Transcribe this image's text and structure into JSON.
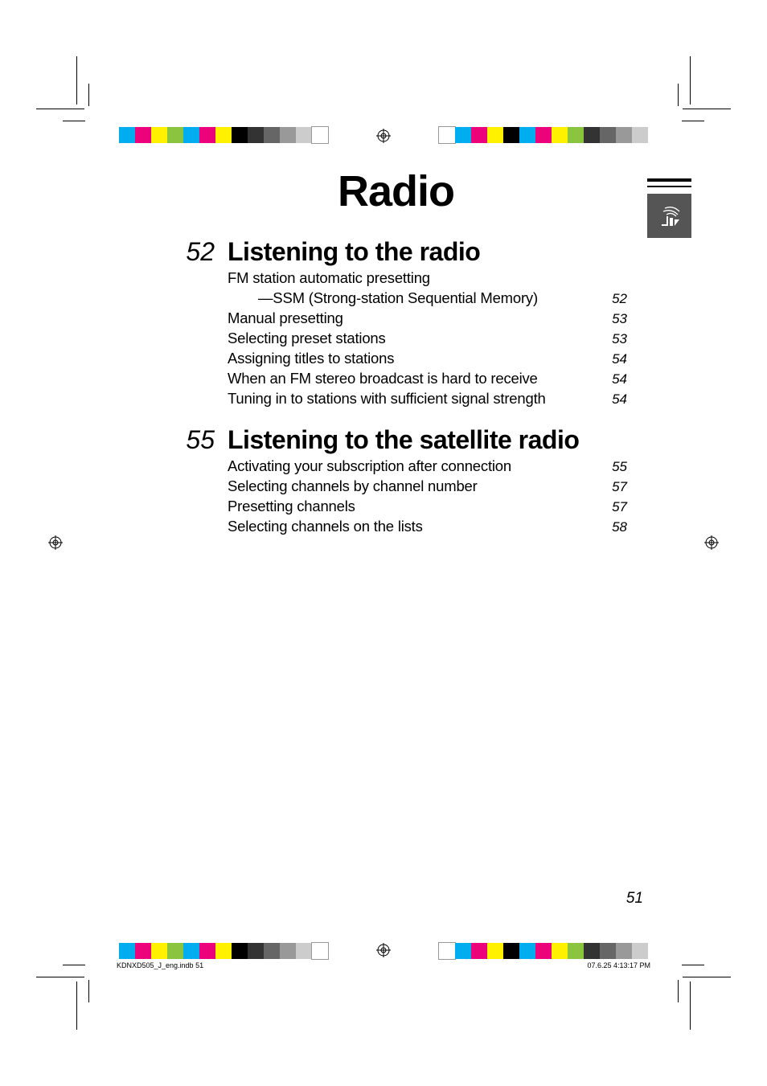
{
  "printer_marks": {
    "swatches_left": [
      "#00adee",
      "#ec037c",
      "#fff100",
      "#8bc53f",
      "#00adee",
      "#ec037c",
      "#fff100",
      "#000000",
      "#333333",
      "#666666",
      "#999999",
      "#cccccc",
      "#ffffff"
    ],
    "swatches_right": [
      "#ffffff",
      "#00adee",
      "#ec037c",
      "#fff100",
      "#000000",
      "#00adee",
      "#ec037c",
      "#fff100",
      "#8bc53f",
      "#333333",
      "#666666",
      "#999999",
      "#cccccc"
    ]
  },
  "side_tab": {
    "icon_name": "satellite-radio-icon"
  },
  "title": "Radio",
  "sections": [
    {
      "number": "52",
      "title": "Listening to the radio",
      "entries": [
        {
          "label": "FM station automatic presetting",
          "page": "",
          "indent": false,
          "continues": true
        },
        {
          "label": "—SSM (Strong-station Sequential Memory)",
          "page": "52",
          "indent": true
        },
        {
          "label": "Manual presetting",
          "page": "53",
          "indent": false
        },
        {
          "label": "Selecting preset stations",
          "page": "53",
          "indent": false
        },
        {
          "label": "Assigning titles to stations",
          "page": "54",
          "indent": false
        },
        {
          "label": "When an FM stereo broadcast is hard to receive",
          "page": "54",
          "indent": false
        },
        {
          "label": "Tuning in to stations with sufficient signal strength",
          "page": "54",
          "indent": false
        }
      ]
    },
    {
      "number": "55",
      "title": "Listening to the satellite radio",
      "entries": [
        {
          "label": "Activating your subscription after connection",
          "page": "55",
          "indent": false
        },
        {
          "label": "Selecting channels by channel number",
          "page": "57",
          "indent": false
        },
        {
          "label": "Presetting channels",
          "page": "57",
          "indent": false
        },
        {
          "label": "Selecting channels on the lists",
          "page": "58",
          "indent": false
        }
      ]
    }
  ],
  "page_number": "51",
  "footer": {
    "left": "KDNXD505_J_eng.indb   51",
    "right": "07.6.25   4:13:17 PM"
  }
}
